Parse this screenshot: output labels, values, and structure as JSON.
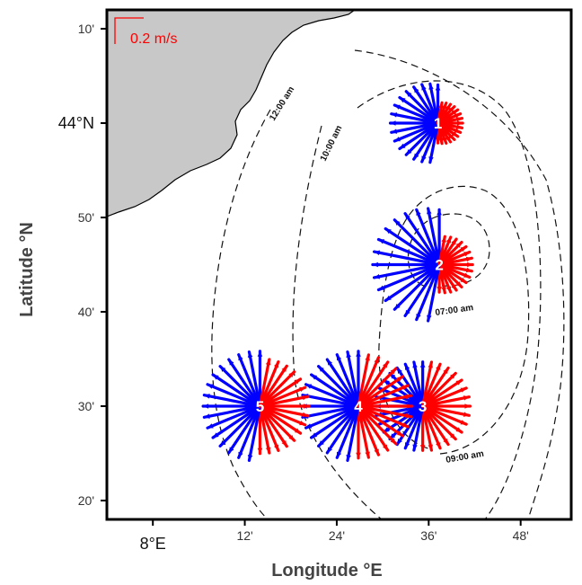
{
  "map": {
    "xlabel": "Longitude °E",
    "ylabel": "Latitude °N",
    "x_ticks": [
      {
        "label": "8°E",
        "lon": 8.0,
        "major": true
      },
      {
        "label": "12'",
        "lon": 8.2,
        "major": false
      },
      {
        "label": "24'",
        "lon": 8.4,
        "major": false
      },
      {
        "label": "36'",
        "lon": 8.6,
        "major": false
      },
      {
        "label": "48'",
        "lon": 8.8,
        "major": false
      }
    ],
    "y_ticks": [
      {
        "label": "10'",
        "lat": 44.1667,
        "major": false
      },
      {
        "label": "44°N",
        "lat": 44.0,
        "major": true
      },
      {
        "label": "50'",
        "lat": 43.8333,
        "major": false
      },
      {
        "label": "40'",
        "lat": 43.6667,
        "major": false
      },
      {
        "label": "30'",
        "lat": 43.5,
        "major": false
      },
      {
        "label": "20'",
        "lat": 43.3333,
        "major": false
      }
    ],
    "extent": {
      "lon": [
        7.9,
        8.91
      ],
      "lat": [
        43.3,
        44.2
      ]
    },
    "scale_bar": {
      "label": "0.2 m/s",
      "value_ms": 0.2,
      "color": "#ff0000"
    },
    "colors": {
      "land": "#c8c8c8",
      "outflow": "#0000ff",
      "inflow": "#ff0000",
      "coast": "#000000"
    },
    "contours": [
      {
        "label": "12:00 am"
      },
      {
        "label": "10:00 am"
      },
      {
        "label": "09:00 am"
      },
      {
        "label": "07:00 am"
      }
    ],
    "stations": [
      {
        "id": "1",
        "lon": 8.62,
        "lat": 44.0
      },
      {
        "id": "2",
        "lon": 8.623,
        "lat": 43.75
      },
      {
        "id": "3",
        "lon": 8.587,
        "lat": 43.5
      },
      {
        "id": "4",
        "lon": 8.447,
        "lat": 43.5
      },
      {
        "id": "5",
        "lon": 8.233,
        "lat": 43.5
      }
    ]
  }
}
